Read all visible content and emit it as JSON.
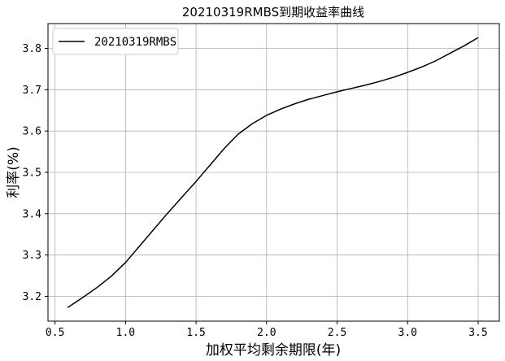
{
  "chart_data": {
    "type": "line",
    "title": "20210319RMBS到期收益率曲线",
    "xlabel": "加权平均剩余期限(年)",
    "ylabel": "利率(%)",
    "xlim": [
      0.45,
      3.65
    ],
    "ylim": [
      3.14,
      3.86
    ],
    "xticks": [
      0.5,
      1.0,
      1.5,
      2.0,
      2.5,
      3.0,
      3.5
    ],
    "xtick_labels": [
      "0.5",
      "1.0",
      "1.5",
      "2.0",
      "2.5",
      "3.0",
      "3.5"
    ],
    "yticks": [
      3.2,
      3.3,
      3.4,
      3.5,
      3.6,
      3.7,
      3.8
    ],
    "ytick_labels": [
      "3.2",
      "3.3",
      "3.4",
      "3.5",
      "3.6",
      "3.7",
      "3.8"
    ],
    "grid": true,
    "legend_position": "top-left",
    "series": [
      {
        "name": "20210319RMBS",
        "color": "#000000",
        "x": [
          0.59,
          0.7,
          0.8,
          0.9,
          1.0,
          1.1,
          1.2,
          1.3,
          1.4,
          1.5,
          1.6,
          1.7,
          1.8,
          1.9,
          2.0,
          2.1,
          2.2,
          2.3,
          2.4,
          2.5,
          2.6,
          2.7,
          2.8,
          2.9,
          3.0,
          3.1,
          3.2,
          3.3,
          3.4,
          3.5
        ],
        "y": [
          3.173,
          3.198,
          3.222,
          3.249,
          3.282,
          3.322,
          3.362,
          3.402,
          3.44,
          3.478,
          3.518,
          3.558,
          3.593,
          3.618,
          3.638,
          3.653,
          3.666,
          3.677,
          3.686,
          3.695,
          3.703,
          3.711,
          3.72,
          3.73,
          3.742,
          3.755,
          3.77,
          3.788,
          3.806,
          3.826
        ]
      }
    ]
  }
}
